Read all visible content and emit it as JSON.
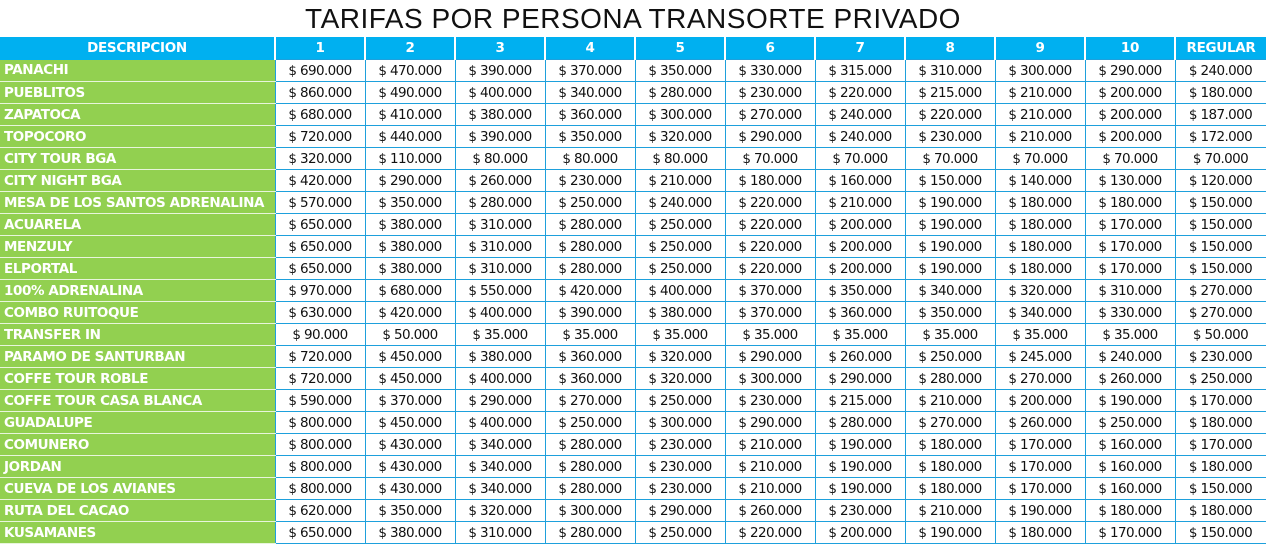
{
  "title": "TARIFAS POR PERSONA TRANSORTE PRIVADO",
  "colors": {
    "header_bg": "#00b0f0",
    "description_bg": "#92d050",
    "grid": "#1ea0dc"
  },
  "headers": [
    "DESCRIPCION",
    "1",
    "2",
    "3",
    "4",
    "5",
    "6",
    "7",
    "8",
    "9",
    "10",
    "REGULAR"
  ],
  "rows": [
    {
      "name": "PANACHI",
      "prices": [
        "$ 690.000",
        "$ 470.000",
        "$ 390.000",
        "$ 370.000",
        "$ 350.000",
        "$ 330.000",
        "$ 315.000",
        "$ 310.000",
        "$ 300.000",
        "$ 290.000",
        "$ 240.000"
      ]
    },
    {
      "name": "PUEBLITOS",
      "prices": [
        "$ 860.000",
        "$ 490.000",
        "$ 400.000",
        "$ 340.000",
        "$ 280.000",
        "$ 230.000",
        "$ 220.000",
        "$ 215.000",
        "$ 210.000",
        "$ 200.000",
        "$ 180.000"
      ]
    },
    {
      "name": "ZAPATOCA",
      "prices": [
        "$ 680.000",
        "$ 410.000",
        "$ 380.000",
        "$ 360.000",
        "$ 300.000",
        "$ 270.000",
        "$ 240.000",
        "$ 220.000",
        "$ 210.000",
        "$ 200.000",
        "$ 187.000"
      ]
    },
    {
      "name": "TOPOCORO",
      "prices": [
        "$ 720.000",
        "$ 440.000",
        "$ 390.000",
        "$ 350.000",
        "$ 320.000",
        "$ 290.000",
        "$ 240.000",
        "$ 230.000",
        "$ 210.000",
        "$ 200.000",
        "$ 172.000"
      ]
    },
    {
      "name": "CITY TOUR BGA",
      "prices": [
        "$ 320.000",
        "$ 110.000",
        "$ 80.000",
        "$ 80.000",
        "$ 80.000",
        "$ 70.000",
        "$ 70.000",
        "$ 70.000",
        "$ 70.000",
        "$ 70.000",
        "$ 70.000"
      ]
    },
    {
      "name": "CITY NIGHT BGA",
      "prices": [
        "$ 420.000",
        "$ 290.000",
        "$ 260.000",
        "$ 230.000",
        "$ 210.000",
        "$ 180.000",
        "$ 160.000",
        "$ 150.000",
        "$ 140.000",
        "$ 130.000",
        "$ 120.000"
      ]
    },
    {
      "name": "MESA DE LOS SANTOS ADRENALINA",
      "prices": [
        "$ 570.000",
        "$ 350.000",
        "$ 280.000",
        "$ 250.000",
        "$ 240.000",
        "$ 220.000",
        "$ 210.000",
        "$ 190.000",
        "$ 180.000",
        "$ 180.000",
        "$ 150.000"
      ]
    },
    {
      "name": "ACUARELA",
      "prices": [
        "$ 650.000",
        "$ 380.000",
        "$ 310.000",
        "$ 280.000",
        "$ 250.000",
        "$ 220.000",
        "$ 200.000",
        "$ 190.000",
        "$ 180.000",
        "$ 170.000",
        "$ 150.000"
      ]
    },
    {
      "name": "MENZULY",
      "prices": [
        "$ 650.000",
        "$ 380.000",
        "$ 310.000",
        "$ 280.000",
        "$ 250.000",
        "$ 220.000",
        "$ 200.000",
        "$ 190.000",
        "$ 180.000",
        "$ 170.000",
        "$ 150.000"
      ]
    },
    {
      "name": "ELPORTAL",
      "prices": [
        "$ 650.000",
        "$ 380.000",
        "$ 310.000",
        "$ 280.000",
        "$ 250.000",
        "$ 220.000",
        "$ 200.000",
        "$ 190.000",
        "$ 180.000",
        "$ 170.000",
        "$ 150.000"
      ]
    },
    {
      "name": "100% ADRENALINA",
      "prices": [
        "$ 970.000",
        "$ 680.000",
        "$ 550.000",
        "$ 420.000",
        "$ 400.000",
        "$ 370.000",
        "$ 350.000",
        "$ 340.000",
        "$ 320.000",
        "$ 310.000",
        "$ 270.000"
      ]
    },
    {
      "name": "COMBO RUITOQUE",
      "prices": [
        "$ 630.000",
        "$ 420.000",
        "$ 400.000",
        "$ 390.000",
        "$ 380.000",
        "$ 370.000",
        "$ 360.000",
        "$ 350.000",
        "$ 340.000",
        "$ 330.000",
        "$ 270.000"
      ]
    },
    {
      "name": "TRANSFER IN",
      "prices": [
        "$ 90.000",
        "$ 50.000",
        "$ 35.000",
        "$ 35.000",
        "$ 35.000",
        "$ 35.000",
        "$ 35.000",
        "$ 35.000",
        "$ 35.000",
        "$ 35.000",
        "$ 50.000"
      ]
    },
    {
      "name": "PARAMO DE SANTURBAN",
      "prices": [
        "$ 720.000",
        "$ 450.000",
        "$ 380.000",
        "$ 360.000",
        "$ 320.000",
        "$ 290.000",
        "$ 260.000",
        "$ 250.000",
        "$ 245.000",
        "$ 240.000",
        "$ 230.000"
      ]
    },
    {
      "name": "COFFE TOUR ROBLE",
      "prices": [
        "$ 720.000",
        "$ 450.000",
        "$ 400.000",
        "$ 360.000",
        "$ 320.000",
        "$ 300.000",
        "$ 290.000",
        "$ 280.000",
        "$ 270.000",
        "$ 260.000",
        "$ 250.000"
      ]
    },
    {
      "name": "COFFE TOUR CASA BLANCA",
      "prices": [
        "$ 590.000",
        "$ 370.000",
        "$ 290.000",
        "$ 270.000",
        "$ 250.000",
        "$ 230.000",
        "$ 215.000",
        "$ 210.000",
        "$ 200.000",
        "$ 190.000",
        "$ 170.000"
      ]
    },
    {
      "name": "GUADALUPE",
      "prices": [
        "$ 800.000",
        "$ 450.000",
        "$ 400.000",
        "$ 250.000",
        "$ 300.000",
        "$ 290.000",
        "$ 280.000",
        "$ 270.000",
        "$ 260.000",
        "$ 250.000",
        "$ 180.000"
      ]
    },
    {
      "name": "COMUNERO",
      "prices": [
        "$ 800.000",
        "$ 430.000",
        "$ 340.000",
        "$ 280.000",
        "$ 230.000",
        "$ 210.000",
        "$ 190.000",
        "$ 180.000",
        "$ 170.000",
        "$ 160.000",
        "$ 170.000"
      ]
    },
    {
      "name": "JORDAN",
      "prices": [
        "$ 800.000",
        "$ 430.000",
        "$ 340.000",
        "$ 280.000",
        "$ 230.000",
        "$ 210.000",
        "$ 190.000",
        "$ 180.000",
        "$ 170.000",
        "$ 160.000",
        "$ 180.000"
      ]
    },
    {
      "name": "CUEVA DE LOS AVIANES",
      "prices": [
        "$ 800.000",
        "$ 430.000",
        "$ 340.000",
        "$ 280.000",
        "$ 230.000",
        "$ 210.000",
        "$ 190.000",
        "$ 180.000",
        "$ 170.000",
        "$ 160.000",
        "$ 150.000"
      ]
    },
    {
      "name": "RUTA DEL CACAO",
      "prices": [
        "$ 620.000",
        "$ 350.000",
        "$ 320.000",
        "$ 300.000",
        "$ 290.000",
        "$ 260.000",
        "$ 230.000",
        "$ 210.000",
        "$ 190.000",
        "$ 180.000",
        "$ 180.000"
      ]
    },
    {
      "name": "KUSAMANES",
      "prices": [
        "$ 650.000",
        "$ 380.000",
        "$ 310.000",
        "$ 280.000",
        "$ 250.000",
        "$ 220.000",
        "$ 200.000",
        "$ 190.000",
        "$ 180.000",
        "$ 170.000",
        "$ 150.000"
      ]
    }
  ]
}
